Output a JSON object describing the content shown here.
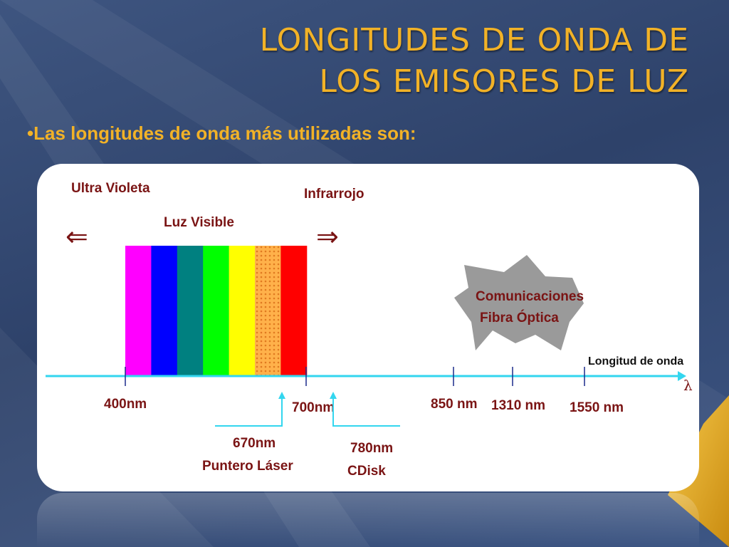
{
  "slide": {
    "title_line1": "LONGITUDES DE ONDA DE",
    "title_line2": "LOS EMISORES DE LUZ",
    "bullet": "•Las longitudes de onda más utilizadas son:"
  },
  "diagram": {
    "uv_label": "Ultra Violeta",
    "ir_label": "Infrarrojo",
    "visible_label": "Luz Visible",
    "left_arrow": "⇐",
    "right_arrow": "⇒",
    "axis_label": "Longitud de onda",
    "lambda": "λ",
    "ticks": {
      "t400": "400nm",
      "t700": "700nm",
      "t850": "850 nm",
      "t1310": "1310 nm",
      "t1550": "1550 nm"
    },
    "callout_laser_value": "670nm",
    "callout_laser_name": "Puntero Láser",
    "callout_cd_value": "780nm",
    "callout_cd_name": "CDisk",
    "comm_line1": "Comunicaciones",
    "comm_line2": "Fibra Óptica",
    "spectrum_colors": [
      "#ff00ff",
      "#0000ff",
      "#008080",
      "#00ff00",
      "#ffff00",
      "#ffa640",
      "#ff0000"
    ],
    "axis_color": "#33d6ef",
    "tick_color": "#1b2a8a"
  },
  "theme": {
    "title_color": "#f2b227",
    "background": "#34496f"
  }
}
